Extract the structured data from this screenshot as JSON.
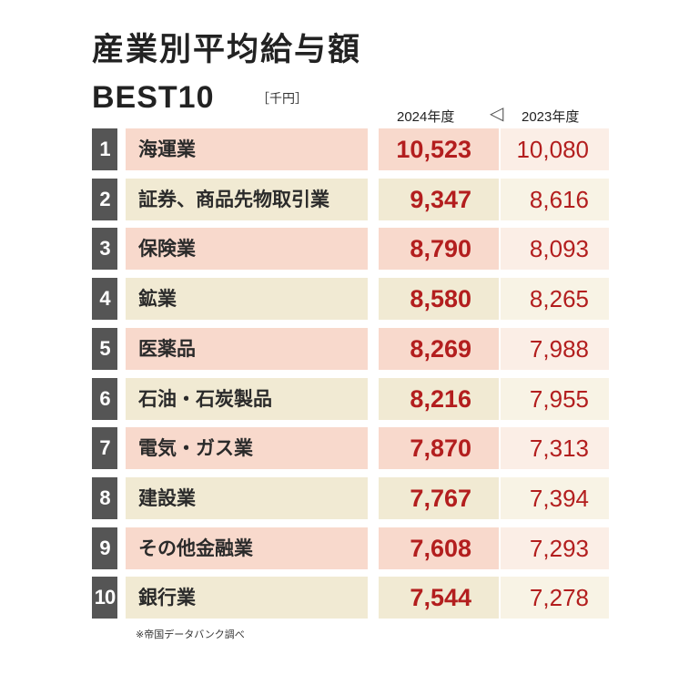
{
  "title": "産業別平均給与額",
  "subtitle": "BEST10",
  "unit": "［千円］",
  "columns": {
    "current": "2024年度",
    "arrow": "◁",
    "previous": "2023年度"
  },
  "footnote": "※帝国データバンク調べ",
  "colors": {
    "rank_badge": "#555555",
    "value_text": "#b31e1e",
    "row_odd": "#f8d9cc",
    "row_even": "#f1ead3"
  },
  "chart_data": {
    "type": "table",
    "title": "産業別平均給与額 BEST10",
    "unit": "千円",
    "series": [
      {
        "name": "2024年度",
        "values": [
          10523,
          9347,
          8790,
          8580,
          8269,
          8216,
          7870,
          7767,
          7608,
          7544
        ]
      },
      {
        "name": "2023年度",
        "values": [
          10080,
          8616,
          8093,
          8265,
          7988,
          7955,
          7313,
          7394,
          7293,
          7278
        ]
      }
    ],
    "categories": [
      "海運業",
      "証券、商品先物取引業",
      "保険業",
      "鉱業",
      "医薬品",
      "石油・石炭製品",
      "電気・ガス業",
      "建設業",
      "その他金融業",
      "銀行業"
    ],
    "rows": [
      {
        "rank": "1",
        "industry": "海運業",
        "v2024": "10,523",
        "v2023": "10,080"
      },
      {
        "rank": "2",
        "industry": "証券、商品先物取引業",
        "v2024": "9,347",
        "v2023": "8,616"
      },
      {
        "rank": "3",
        "industry": "保険業",
        "v2024": "8,790",
        "v2023": "8,093"
      },
      {
        "rank": "4",
        "industry": "鉱業",
        "v2024": "8,580",
        "v2023": "8,265"
      },
      {
        "rank": "5",
        "industry": "医薬品",
        "v2024": "8,269",
        "v2023": "7,988"
      },
      {
        "rank": "6",
        "industry": "石油・石炭製品",
        "v2024": "8,216",
        "v2023": "7,955"
      },
      {
        "rank": "7",
        "industry": "電気・ガス業",
        "v2024": "7,870",
        "v2023": "7,313"
      },
      {
        "rank": "8",
        "industry": "建設業",
        "v2024": "7,767",
        "v2023": "7,394"
      },
      {
        "rank": "9",
        "industry": "その他金融業",
        "v2024": "7,608",
        "v2023": "7,293"
      },
      {
        "rank": "10",
        "industry": "銀行業",
        "v2024": "7,544",
        "v2023": "7,278"
      }
    ]
  }
}
